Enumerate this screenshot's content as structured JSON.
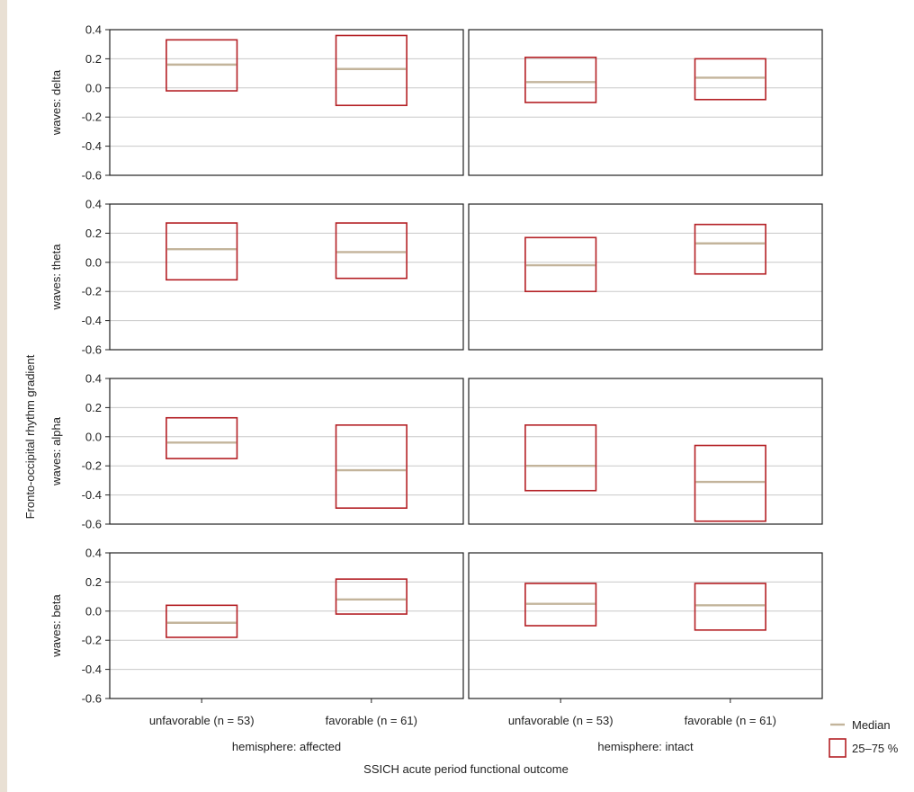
{
  "chart_data": {
    "type": "box",
    "ylabel": "Fronto-occipital rhythm gradient",
    "xlabel": "SSICH acute period functional outcome",
    "ylim": [
      -0.6,
      0.4
    ],
    "yticks": [
      "0.4",
      "0.2",
      "0.0",
      "-0.2",
      "-0.4",
      "-0.6"
    ],
    "ytick_values": [
      0.4,
      0.2,
      0.0,
      -0.2,
      -0.4,
      -0.6
    ],
    "grid": true,
    "columns": [
      {
        "label": "hemisphere: affected",
        "categories": [
          "unfavorable (n = 53)",
          "favorable (n = 61)"
        ]
      },
      {
        "label": "hemisphere: intact",
        "categories": [
          "unfavorable (n = 53)",
          "favorable (n = 61)"
        ]
      }
    ],
    "rows": [
      {
        "label": "waves: delta",
        "cells": [
          [
            {
              "q1": -0.02,
              "median": 0.16,
              "q3": 0.33
            },
            {
              "q1": -0.12,
              "median": 0.13,
              "q3": 0.36
            }
          ],
          [
            {
              "q1": -0.1,
              "median": 0.04,
              "q3": 0.21
            },
            {
              "q1": -0.08,
              "median": 0.07,
              "q3": 0.2
            }
          ]
        ]
      },
      {
        "label": "waves: theta",
        "cells": [
          [
            {
              "q1": -0.12,
              "median": 0.09,
              "q3": 0.27
            },
            {
              "q1": -0.11,
              "median": 0.07,
              "q3": 0.27
            }
          ],
          [
            {
              "q1": -0.2,
              "median": -0.02,
              "q3": 0.17
            },
            {
              "q1": -0.08,
              "median": 0.13,
              "q3": 0.26
            }
          ]
        ]
      },
      {
        "label": "waves: alpha",
        "cells": [
          [
            {
              "q1": -0.15,
              "median": -0.04,
              "q3": 0.13
            },
            {
              "q1": -0.49,
              "median": -0.23,
              "q3": 0.08
            }
          ],
          [
            {
              "q1": -0.37,
              "median": -0.2,
              "q3": 0.08
            },
            {
              "q1": -0.58,
              "median": -0.31,
              "q3": -0.06
            }
          ]
        ]
      },
      {
        "label": "waves: beta",
        "cells": [
          [
            {
              "q1": -0.18,
              "median": -0.08,
              "q3": 0.04
            },
            {
              "q1": -0.02,
              "median": 0.08,
              "q3": 0.22
            }
          ],
          [
            {
              "q1": -0.1,
              "median": 0.05,
              "q3": 0.19
            },
            {
              "q1": -0.13,
              "median": 0.04,
              "q3": 0.19
            }
          ]
        ]
      }
    ],
    "legend": {
      "position": "bottom-right",
      "median_label": "Median",
      "box_label": "25–75 %"
    },
    "colors": {
      "box": "#b42025",
      "median": "#c3b49b",
      "grid": "#c8c8c8",
      "axis": "#222222"
    }
  }
}
